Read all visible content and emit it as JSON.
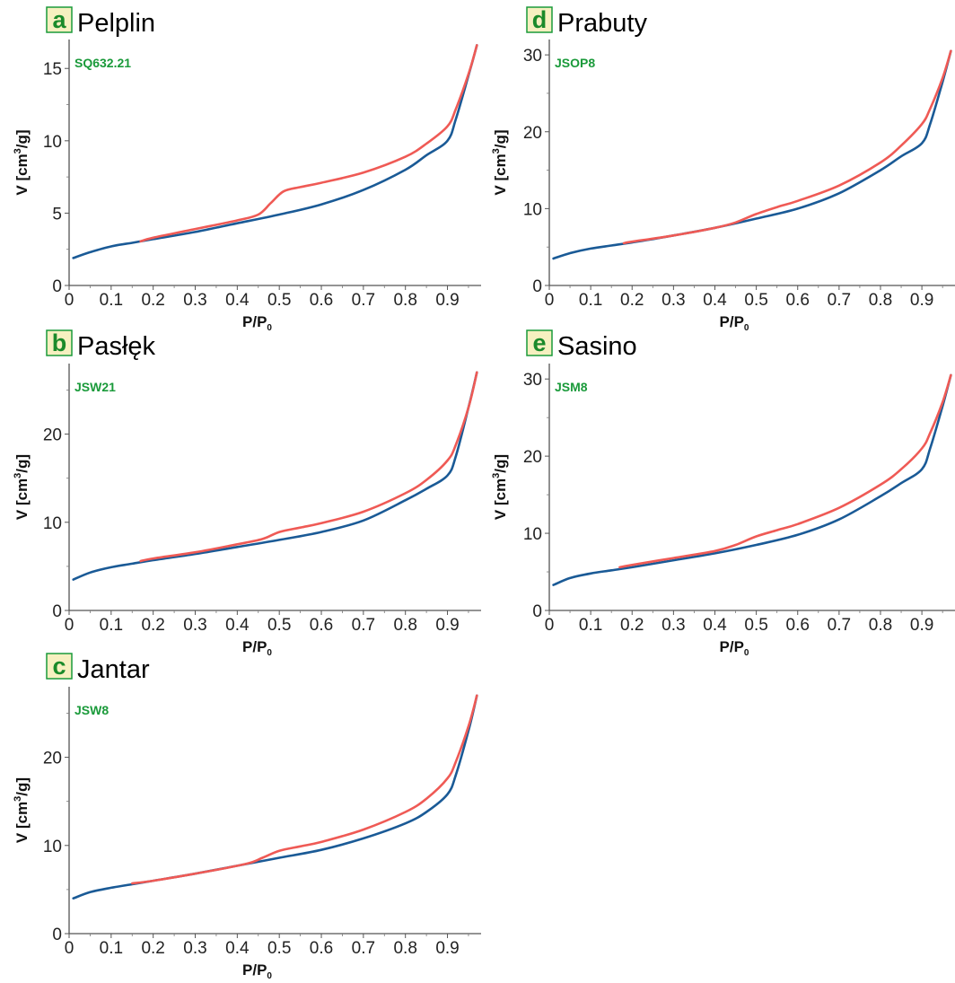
{
  "colors": {
    "adsorption": "#1a5a96",
    "desorption": "#ef5a55",
    "sample_label": "#1a9a3a",
    "badge_fill": "#f6f0c0",
    "badge_stroke": "#1a9a3a",
    "badge_letter": "#1a8a2a"
  },
  "chart_data": [
    {
      "type": "line",
      "letter": "a",
      "title": "Pelplin",
      "sample": "SQ632.21",
      "xlabel": "P/P",
      "xlabel_sub": "0",
      "ylabel": "V  [cm",
      "ylabel_sup": "3",
      "ylabel_tail": "/g]",
      "xlim": [
        0,
        0.98
      ],
      "ylim": [
        0,
        17
      ],
      "x_ticks": [
        "0",
        "0.1",
        "0.2",
        "0.3",
        "0.4",
        "0.5",
        "0.6",
        "0.7",
        "0.8",
        "0.9"
      ],
      "y_ticks": [
        "0",
        "5",
        "10",
        "15"
      ],
      "series": [
        {
          "kind": "adsorption",
          "x": [
            0.01,
            0.05,
            0.1,
            0.15,
            0.2,
            0.3,
            0.4,
            0.5,
            0.6,
            0.7,
            0.8,
            0.85,
            0.9,
            0.92,
            0.95,
            0.97
          ],
          "y": [
            1.9,
            2.3,
            2.7,
            2.95,
            3.2,
            3.7,
            4.3,
            4.9,
            5.6,
            6.6,
            8.0,
            9.0,
            10.0,
            11.5,
            14.5,
            16.6
          ]
        },
        {
          "kind": "desorption",
          "x": [
            0.17,
            0.2,
            0.3,
            0.4,
            0.45,
            0.48,
            0.51,
            0.55,
            0.6,
            0.7,
            0.8,
            0.85,
            0.9,
            0.92,
            0.95,
            0.97
          ],
          "y": [
            3.05,
            3.3,
            3.9,
            4.5,
            4.9,
            5.7,
            6.5,
            6.8,
            7.1,
            7.8,
            8.9,
            9.8,
            11.0,
            12.2,
            14.6,
            16.6
          ]
        }
      ]
    },
    {
      "type": "line",
      "letter": "b",
      "title": "Pasłęk",
      "sample": "JSW21",
      "xlabel": "P/P",
      "xlabel_sub": "0",
      "ylabel": "V  [cm",
      "ylabel_sup": "3",
      "ylabel_tail": "/g]",
      "xlim": [
        0,
        0.98
      ],
      "ylim": [
        0,
        28
      ],
      "x_ticks": [
        "0",
        "0.1",
        "0.2",
        "0.3",
        "0.4",
        "0.5",
        "0.6",
        "0.7",
        "0.8",
        "0.9"
      ],
      "y_ticks": [
        "0",
        "10",
        "20"
      ],
      "series": [
        {
          "kind": "adsorption",
          "x": [
            0.01,
            0.05,
            0.1,
            0.15,
            0.2,
            0.3,
            0.4,
            0.5,
            0.6,
            0.7,
            0.8,
            0.85,
            0.9,
            0.92,
            0.95,
            0.97
          ],
          "y": [
            3.5,
            4.3,
            4.9,
            5.3,
            5.7,
            6.4,
            7.2,
            8.0,
            8.9,
            10.2,
            12.5,
            13.8,
            15.3,
            17.5,
            23.0,
            27.0
          ]
        },
        {
          "kind": "desorption",
          "x": [
            0.17,
            0.2,
            0.3,
            0.4,
            0.46,
            0.5,
            0.55,
            0.6,
            0.7,
            0.8,
            0.85,
            0.9,
            0.92,
            0.95,
            0.97
          ],
          "y": [
            5.6,
            5.9,
            6.6,
            7.5,
            8.1,
            8.9,
            9.4,
            9.9,
            11.2,
            13.3,
            14.8,
            17.0,
            18.8,
            23.0,
            27.0
          ]
        }
      ]
    },
    {
      "type": "line",
      "letter": "c",
      "title": "Jantar",
      "sample": "JSW8",
      "xlabel": "P/P",
      "xlabel_sub": "0",
      "ylabel": "V  [cm",
      "ylabel_sup": "3",
      "ylabel_tail": "/g]",
      "xlim": [
        0,
        0.98
      ],
      "ylim": [
        0,
        28
      ],
      "x_ticks": [
        "0",
        "0.1",
        "0.2",
        "0.3",
        "0.4",
        "0.5",
        "0.6",
        "0.7",
        "0.8",
        "0.9"
      ],
      "y_ticks": [
        "0",
        "10",
        "20"
      ],
      "series": [
        {
          "kind": "adsorption",
          "x": [
            0.01,
            0.05,
            0.1,
            0.15,
            0.2,
            0.3,
            0.4,
            0.5,
            0.6,
            0.7,
            0.8,
            0.85,
            0.9,
            0.92,
            0.95,
            0.97
          ],
          "y": [
            4.0,
            4.7,
            5.2,
            5.6,
            6.0,
            6.8,
            7.7,
            8.6,
            9.5,
            10.8,
            12.5,
            13.8,
            15.8,
            18.0,
            23.0,
            27.0
          ]
        },
        {
          "kind": "desorption",
          "x": [
            0.15,
            0.2,
            0.3,
            0.42,
            0.46,
            0.5,
            0.55,
            0.6,
            0.7,
            0.8,
            0.85,
            0.9,
            0.92,
            0.95,
            0.97
          ],
          "y": [
            5.7,
            6.0,
            6.8,
            7.9,
            8.6,
            9.4,
            9.9,
            10.4,
            11.8,
            13.8,
            15.3,
            17.6,
            19.5,
            23.5,
            27.0
          ]
        }
      ]
    },
    {
      "type": "line",
      "letter": "d",
      "title": "Prabuty",
      "sample": "JSOP8",
      "xlabel": "P/P",
      "xlabel_sub": "0",
      "ylabel": "V  [cm",
      "ylabel_sup": "3",
      "ylabel_tail": "/g]",
      "xlim": [
        0,
        0.98
      ],
      "ylim": [
        0,
        32
      ],
      "x_ticks": [
        "0",
        "0.1",
        "0.2",
        "0.3",
        "0.4",
        "0.5",
        "0.6",
        "0.7",
        "0.8",
        "0.9"
      ],
      "y_ticks": [
        "0",
        "10",
        "20",
        "30"
      ],
      "series": [
        {
          "kind": "adsorption",
          "x": [
            0.01,
            0.05,
            0.1,
            0.15,
            0.2,
            0.3,
            0.4,
            0.5,
            0.6,
            0.7,
            0.8,
            0.85,
            0.9,
            0.92,
            0.95,
            0.97
          ],
          "y": [
            3.5,
            4.2,
            4.8,
            5.2,
            5.6,
            6.5,
            7.5,
            8.7,
            10.0,
            12.0,
            15.0,
            16.8,
            18.5,
            21.0,
            26.5,
            30.5
          ]
        },
        {
          "kind": "desorption",
          "x": [
            0.18,
            0.2,
            0.3,
            0.4,
            0.45,
            0.5,
            0.55,
            0.6,
            0.7,
            0.8,
            0.85,
            0.9,
            0.92,
            0.95,
            0.97
          ],
          "y": [
            5.5,
            5.7,
            6.5,
            7.5,
            8.2,
            9.3,
            10.2,
            11.0,
            13.0,
            16.0,
            18.2,
            21.0,
            23.0,
            27.0,
            30.5
          ]
        }
      ]
    },
    {
      "type": "line",
      "letter": "e",
      "title": "Sasino",
      "sample": "JSM8",
      "xlabel": "P/P",
      "xlabel_sub": "0",
      "ylabel": "V  [cm",
      "ylabel_sup": "3",
      "ylabel_tail": "/g]",
      "xlim": [
        0,
        0.98
      ],
      "ylim": [
        0,
        32
      ],
      "x_ticks": [
        "0",
        "0.1",
        "0.2",
        "0.3",
        "0.4",
        "0.5",
        "0.6",
        "0.7",
        "0.8",
        "0.9"
      ],
      "y_ticks": [
        "0",
        "10",
        "20",
        "30"
      ],
      "series": [
        {
          "kind": "adsorption",
          "x": [
            0.01,
            0.05,
            0.1,
            0.15,
            0.2,
            0.3,
            0.4,
            0.5,
            0.6,
            0.7,
            0.8,
            0.85,
            0.9,
            0.92,
            0.95,
            0.97
          ],
          "y": [
            3.3,
            4.2,
            4.8,
            5.2,
            5.6,
            6.5,
            7.4,
            8.5,
            9.8,
            11.8,
            14.8,
            16.5,
            18.3,
            21.0,
            26.5,
            30.5
          ]
        },
        {
          "kind": "desorption",
          "x": [
            0.17,
            0.2,
            0.3,
            0.4,
            0.45,
            0.5,
            0.55,
            0.6,
            0.7,
            0.8,
            0.85,
            0.9,
            0.92,
            0.95,
            0.97
          ],
          "y": [
            5.6,
            5.9,
            6.8,
            7.7,
            8.5,
            9.6,
            10.4,
            11.2,
            13.3,
            16.3,
            18.3,
            21.0,
            23.0,
            27.0,
            30.5
          ]
        }
      ]
    }
  ]
}
